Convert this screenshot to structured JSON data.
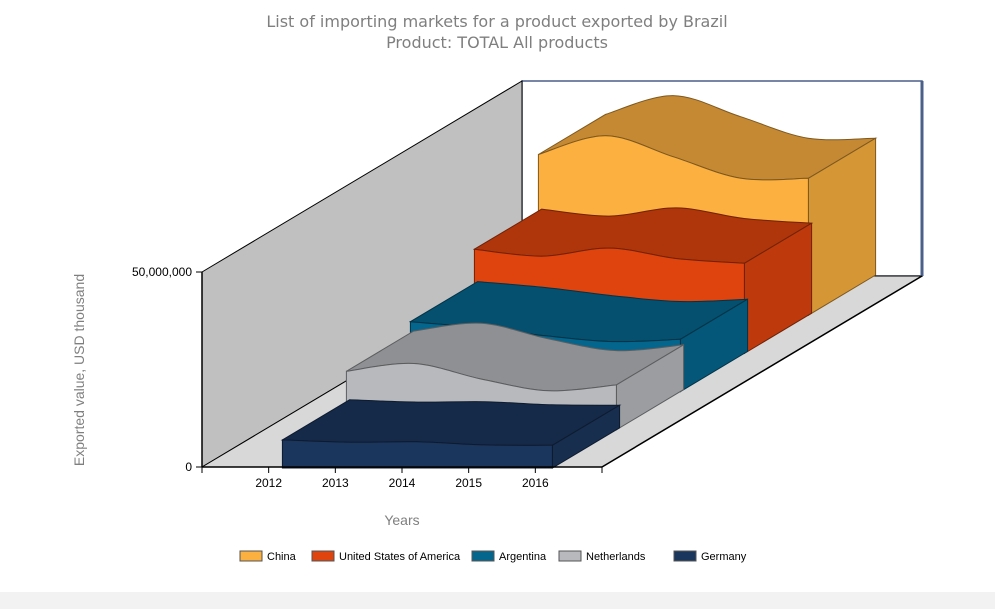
{
  "chart_data": {
    "type": "area",
    "title": "List of importing markets for a product exported by Brazil",
    "subtitle": "Product: TOTAL All products",
    "xlabel": "Years",
    "ylabel": "Exported value, USD thousand",
    "categories": [
      "2012",
      "2013",
      "2014",
      "2015",
      "2016"
    ],
    "yticks": [
      {
        "value": 0,
        "label": "0"
      },
      {
        "value": 50000000,
        "label": "50,000,000"
      }
    ],
    "ylim": [
      0,
      50000000
    ],
    "legend_position": "bottom-center",
    "three_d": true,
    "series": [
      {
        "name": "China",
        "color": "#fbb040",
        "values": [
          41200000,
          46000000,
          40600000,
          35100000,
          35100000
        ]
      },
      {
        "name": "United States of America",
        "color": "#e0440e",
        "values": [
          26700000,
          24900000,
          27000000,
          24300000,
          23100000
        ]
      },
      {
        "name": "Argentina",
        "color": "#05668d",
        "values": [
          17900000,
          16400000,
          14300000,
          12800000,
          13400000
        ]
      },
      {
        "name": "Netherlands",
        "color": "#b7b9bd",
        "values": [
          15000000,
          17000000,
          13000000,
          10000000,
          11500000
        ]
      },
      {
        "name": "Germany",
        "color": "#1b365d",
        "values": [
          7200000,
          6600000,
          6700000,
          5900000,
          5800000
        ]
      }
    ]
  }
}
